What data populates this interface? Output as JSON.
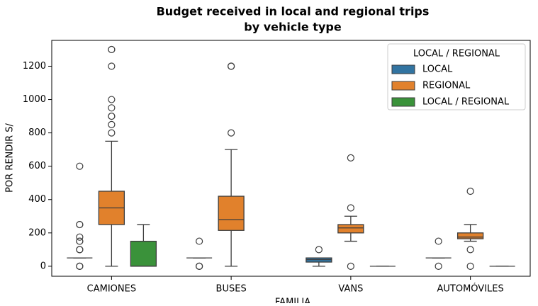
{
  "chart_data": {
    "type": "box",
    "title": [
      "Budget received in local and regional trips",
      "by vehicle type"
    ],
    "xlabel": "FAMILIA",
    "ylabel": "POR RENDIR S/",
    "categories": [
      "CAMIONES",
      "BUSES",
      "VANS",
      "AUTOMÓVILES"
    ],
    "ylim": [
      -60,
      1355
    ],
    "yticks": [
      0,
      200,
      400,
      600,
      800,
      1000,
      1200
    ],
    "legend": {
      "title": "LOCAL / REGIONAL",
      "location": "upper right"
    },
    "series": [
      {
        "name": "LOCAL",
        "color": "#3274a1",
        "boxes": [
          {
            "min": 50,
            "q1": 50,
            "median": 50,
            "q3": 50,
            "max": 50,
            "outliers": [
              600,
              250,
              250,
              175,
              150,
              150,
              100,
              100,
              0,
              0
            ]
          },
          {
            "min": 50,
            "q1": 50,
            "median": 50,
            "q3": 50,
            "max": 50,
            "outliers": [
              150,
              0,
              0
            ]
          },
          {
            "min": 0,
            "q1": 25,
            "median": 40,
            "q3": 50,
            "max": 50,
            "outliers": [
              100
            ]
          },
          {
            "min": 50,
            "q1": 50,
            "median": 50,
            "q3": 50,
            "max": 50,
            "outliers": [
              150,
              0
            ]
          }
        ]
      },
      {
        "name": "REGIONAL",
        "color": "#e1812c",
        "boxes": [
          {
            "min": 0,
            "q1": 250,
            "median": 350,
            "q3": 450,
            "max": 750,
            "outliers": [
              800,
              850,
              900,
              900,
              950,
              1000,
              1200,
              1300,
              1300
            ]
          },
          {
            "min": 0,
            "q1": 215,
            "median": 280,
            "q3": 420,
            "max": 700,
            "outliers": [
              800,
              1200,
              1200
            ]
          },
          {
            "min": 150,
            "q1": 200,
            "median": 230,
            "q3": 250,
            "max": 300,
            "outliers": [
              350,
              650,
              0
            ]
          },
          {
            "min": 150,
            "q1": 165,
            "median": 175,
            "q3": 200,
            "max": 250,
            "outliers": [
              450,
              100,
              0
            ]
          }
        ]
      },
      {
        "name": "LOCAL / REGIONAL",
        "color": "#3a923a",
        "boxes": [
          {
            "min": 0,
            "q1": 0,
            "median": 0,
            "q3": 150,
            "max": 250,
            "outliers": []
          },
          null,
          {
            "min": 0,
            "q1": 0,
            "median": 0,
            "q3": 0,
            "max": 0,
            "outliers": []
          },
          {
            "min": 0,
            "q1": 0,
            "median": 0,
            "q3": 0,
            "max": 0,
            "outliers": []
          }
        ]
      }
    ]
  }
}
